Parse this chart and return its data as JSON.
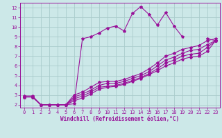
{
  "xlabel": "Windchill (Refroidissement éolien,°C)",
  "xlim": [
    -0.5,
    23.5
  ],
  "ylim": [
    1.7,
    12.5
  ],
  "xticks": [
    0,
    1,
    2,
    3,
    4,
    5,
    6,
    7,
    8,
    9,
    10,
    11,
    12,
    13,
    14,
    15,
    16,
    17,
    18,
    19,
    20,
    21,
    22,
    23
  ],
  "yticks": [
    2,
    3,
    4,
    5,
    6,
    7,
    8,
    9,
    10,
    11,
    12
  ],
  "bg_color": "#cce8e8",
  "grid_color": "#aacccc",
  "line_color": "#991199",
  "line1_x": [
    0,
    1,
    2,
    3,
    4,
    5,
    6,
    7,
    8,
    9,
    10,
    11,
    12,
    13,
    14,
    15,
    16,
    17,
    18,
    19,
    20,
    21,
    22,
    23
  ],
  "line1_y": [
    2.9,
    2.9,
    2.0,
    2.0,
    2.0,
    2.0,
    2.1,
    8.8,
    9.0,
    9.4,
    9.9,
    10.1,
    9.6,
    11.4,
    12.1,
    11.3,
    10.2,
    11.5,
    10.1,
    9.0,
    null,
    null,
    8.8,
    8.6
  ],
  "line2_x": [
    0,
    1,
    2,
    3,
    4,
    5,
    6,
    7,
    8,
    9,
    10,
    11,
    12,
    13,
    14,
    15,
    16,
    17,
    18,
    19,
    20,
    21,
    22,
    23
  ],
  "line2_y": [
    2.8,
    2.8,
    2.0,
    2.0,
    2.0,
    2.0,
    3.0,
    3.3,
    3.8,
    4.3,
    4.4,
    4.4,
    4.6,
    4.9,
    5.2,
    5.7,
    6.3,
    7.0,
    7.3,
    7.7,
    7.9,
    8.1,
    8.6,
    8.8
  ],
  "line3_x": [
    0,
    1,
    2,
    3,
    4,
    5,
    6,
    7,
    8,
    9,
    10,
    11,
    12,
    13,
    14,
    15,
    16,
    17,
    18,
    19,
    20,
    21,
    22,
    23
  ],
  "line3_y": [
    2.8,
    2.8,
    2.0,
    2.0,
    2.0,
    2.0,
    2.8,
    3.1,
    3.5,
    4.0,
    4.2,
    4.2,
    4.4,
    4.7,
    5.0,
    5.4,
    6.0,
    6.6,
    6.9,
    7.3,
    7.6,
    7.7,
    8.2,
    8.6
  ],
  "line4_x": [
    0,
    1,
    2,
    3,
    4,
    5,
    6,
    7,
    8,
    9,
    10,
    11,
    12,
    13,
    14,
    15,
    16,
    17,
    18,
    19,
    20,
    21,
    22,
    23
  ],
  "line4_y": [
    2.8,
    2.8,
    2.0,
    2.0,
    2.0,
    2.0,
    2.6,
    2.9,
    3.3,
    3.8,
    3.9,
    4.0,
    4.2,
    4.5,
    4.8,
    5.2,
    5.7,
    6.3,
    6.6,
    7.0,
    7.2,
    7.3,
    7.9,
    8.6
  ],
  "line5_x": [
    0,
    1,
    2,
    3,
    4,
    5,
    6,
    7,
    8,
    9,
    10,
    11,
    12,
    13,
    14,
    15,
    16,
    17,
    18,
    19,
    20,
    21,
    22,
    23
  ],
  "line5_y": [
    2.8,
    2.8,
    2.0,
    2.0,
    2.0,
    2.0,
    2.4,
    2.7,
    3.1,
    3.6,
    3.8,
    3.9,
    4.1,
    4.4,
    4.7,
    5.1,
    5.5,
    6.0,
    6.3,
    6.7,
    6.9,
    7.0,
    7.5,
    8.6
  ]
}
